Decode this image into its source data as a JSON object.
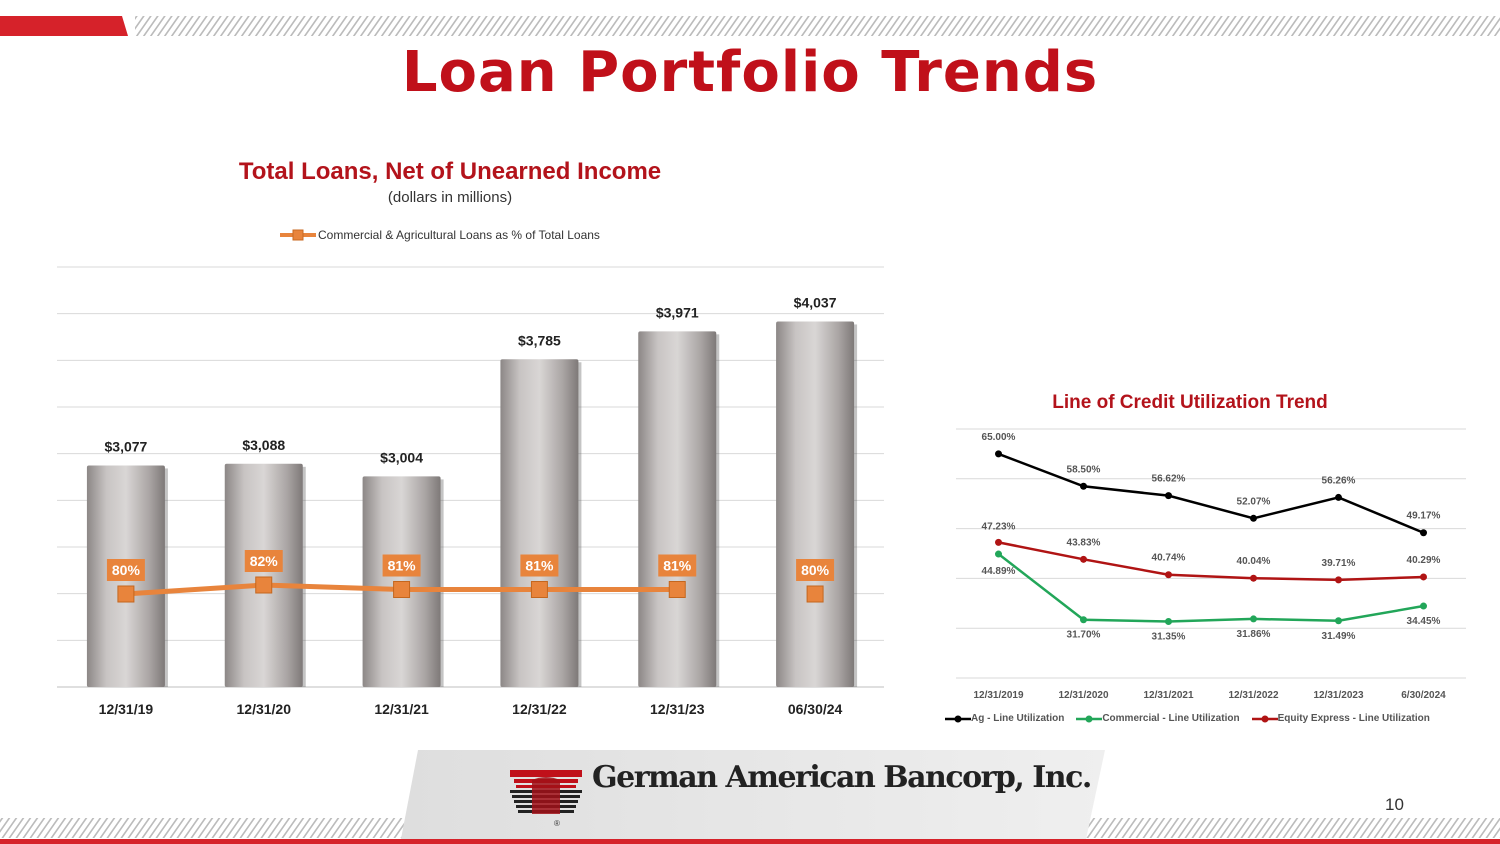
{
  "slide": {
    "title": "Loan Portfolio Trends",
    "page_number": "10",
    "company": "German American Bancorp, Inc.",
    "colors": {
      "accent_red": "#c0101a",
      "bar_gray": "#a8a3a2",
      "line_orange": "#e8843c"
    }
  },
  "chart_data": [
    {
      "type": "bar",
      "title": "Total Loans, Net of Unearned Income",
      "subtitle": "(dollars in millions)",
      "categories": [
        "12/31/19",
        "12/31/20",
        "12/31/21",
        "12/31/22",
        "12/31/23",
        "06/30/24"
      ],
      "values": [
        3077,
        3088,
        3004,
        3785,
        3971,
        4037
      ],
      "value_labels": [
        "$3,077",
        "$3,088",
        "$3,004",
        "$3,785",
        "$3,971",
        "$4,037"
      ],
      "ylim": [
        1600,
        4400
      ],
      "grid": true,
      "secondary_series": {
        "name": "Commercial & Agricultural Loans as % of Total Loans",
        "type": "line",
        "values": [
          80,
          82,
          81,
          81,
          81,
          80
        ],
        "labels": [
          "80%",
          "82%",
          "81%",
          "81%",
          "81%",
          "80%"
        ],
        "connected_points": 5
      },
      "legend": "top-left"
    },
    {
      "type": "line",
      "title": "Line of Credit Utilization Trend",
      "categories": [
        "12/31/2019",
        "12/31/2020",
        "12/31/2021",
        "12/31/2022",
        "12/31/2023",
        "6/30/2024"
      ],
      "ylim": [
        20,
        70
      ],
      "grid": true,
      "legend": "bottom",
      "series": [
        {
          "name": "Ag - Line Utilization",
          "color": "#000000",
          "values": [
            65.0,
            58.5,
            56.62,
            52.07,
            56.26,
            49.17
          ],
          "labels": [
            "65.00%",
            "58.50%",
            "56.62%",
            "52.07%",
            "56.26%",
            "49.17%"
          ]
        },
        {
          "name": "Commercial - Line Utilization",
          "color": "#22a659",
          "values": [
            44.89,
            31.7,
            31.35,
            31.86,
            31.49,
            34.45
          ],
          "labels": [
            "44.89%",
            "31.70%",
            "31.35%",
            "31.86%",
            "31.49%",
            "34.45%"
          ]
        },
        {
          "name": "Equity Express - Line Utilization",
          "color": "#b01414",
          "values": [
            47.23,
            43.83,
            40.74,
            40.04,
            39.71,
            40.29
          ],
          "labels": [
            "47.23%",
            "43.83%",
            "40.74%",
            "40.04%",
            "39.71%",
            "40.29%"
          ]
        }
      ]
    }
  ]
}
